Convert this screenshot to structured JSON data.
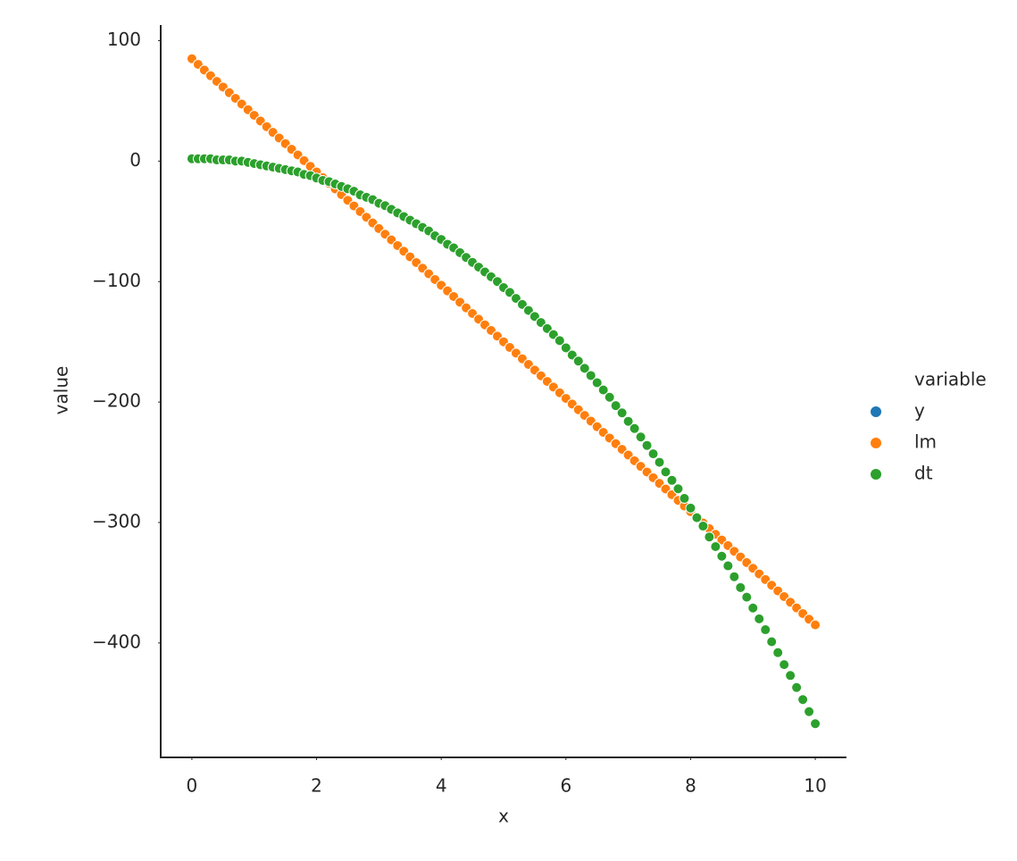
{
  "chart_data": {
    "type": "scatter",
    "x_label": "x",
    "y_label": "value",
    "xlim": [
      -0.5,
      10.5
    ],
    "xticks": [
      0,
      2,
      4,
      6,
      8,
      10
    ],
    "ylim": [
      -495,
      113
    ],
    "yticks": [
      {
        "value": -400,
        "label": "−400"
      },
      {
        "value": -300,
        "label": "−300"
      },
      {
        "value": -200,
        "label": "−200"
      },
      {
        "value": -100,
        "label": "−100"
      },
      0,
      100
    ],
    "grid": false,
    "legend_title": "variable",
    "legend_position": "right",
    "x": [
      0,
      0.1,
      0.2,
      0.3,
      0.4,
      0.5,
      0.6,
      0.7,
      0.8,
      0.9,
      1,
      1.1,
      1.2,
      1.3,
      1.4,
      1.5,
      1.6,
      1.7,
      1.8,
      1.9,
      2,
      2.1,
      2.2,
      2.3,
      2.4,
      2.5,
      2.6,
      2.7,
      2.8,
      2.9,
      3,
      3.1,
      3.2,
      3.3,
      3.4,
      3.5,
      3.6,
      3.7,
      3.8,
      3.9,
      4,
      4.1,
      4.2,
      4.3,
      4.4,
      4.5,
      4.6,
      4.7,
      4.8,
      4.9,
      5,
      5.1,
      5.2,
      5.3,
      5.4,
      5.5,
      5.6,
      5.7,
      5.8,
      5.9,
      6,
      6.1,
      6.2,
      6.3,
      6.4,
      6.5,
      6.6,
      6.7,
      6.8,
      6.9,
      7,
      7.1,
      7.2,
      7.3,
      7.4,
      7.5,
      7.6,
      7.7,
      7.8,
      7.9,
      8,
      8.1,
      8.2,
      8.3,
      8.4,
      8.5,
      8.6,
      8.7,
      8.8,
      8.9,
      9,
      9.1,
      9.2,
      9.3,
      9.4,
      9.5,
      9.6,
      9.7,
      9.8,
      9.9,
      10
    ],
    "series": [
      {
        "name": "y",
        "color": "#1f77b4",
        "values": [
          null,
          null,
          null,
          null,
          null,
          null,
          null,
          null,
          null,
          null,
          null,
          null,
          null,
          null,
          null,
          null,
          null,
          null,
          null,
          null,
          null,
          null,
          null,
          null,
          null,
          null,
          null,
          null,
          null,
          null,
          null,
          null,
          null,
          null,
          null,
          null,
          null,
          null,
          null,
          null,
          null,
          null,
          null,
          null,
          null,
          null,
          null,
          null,
          null,
          null,
          null,
          null,
          null,
          null,
          null,
          null,
          null,
          null,
          null,
          null,
          null,
          null,
          null,
          null,
          null,
          null,
          null,
          null,
          null,
          null,
          null,
          null,
          null,
          null,
          null,
          null,
          null,
          null,
          null,
          null,
          null,
          null,
          null,
          null,
          null,
          null,
          null,
          null,
          null,
          null,
          null,
          null,
          null,
          null,
          null,
          null,
          null,
          null,
          null,
          null,
          null
        ]
      },
      {
        "name": "lm",
        "color": "#ff7f0e",
        "values": [
          85,
          80.3,
          75.6,
          70.9,
          66.2,
          61.5,
          56.8,
          52.1,
          47.4,
          42.7,
          38,
          33.3,
          28.6,
          23.9,
          19.2,
          14.5,
          9.8,
          5.1,
          0.4,
          -4.3,
          -9,
          -13.7,
          -18.4,
          -23.1,
          -27.8,
          -32.5,
          -37.2,
          -41.9,
          -46.6,
          -51.3,
          -56,
          -60.7,
          -65.4,
          -70.1,
          -74.8,
          -79.5,
          -84.2,
          -88.9,
          -93.6,
          -98.3,
          -103,
          -107.7,
          -112.4,
          -117.1,
          -121.8,
          -126.5,
          -131.2,
          -135.9,
          -140.6,
          -145.3,
          -150,
          -154.7,
          -159.4,
          -164.1,
          -168.8,
          -173.5,
          -178.2,
          -182.9,
          -187.6,
          -192.3,
          -197,
          -201.7,
          -206.4,
          -211.1,
          -215.8,
          -220.5,
          -225.2,
          -229.9,
          -234.6,
          -239.3,
          -244,
          -248.7,
          -253.4,
          -258.1,
          -262.8,
          -267.5,
          -272.2,
          -276.9,
          -281.6,
          -286.3,
          -291,
          -295.7,
          -300.4,
          -305.1,
          -309.8,
          -314.5,
          -319.2,
          -323.9,
          -328.6,
          -333.3,
          -338,
          -342.7,
          -347.4,
          -352.1,
          -356.8,
          -361.5,
          -366.2,
          -370.9,
          -375.6,
          -380.3,
          -385
        ]
      },
      {
        "name": "dt",
        "color": "#2ca02c",
        "values": [
          2,
          2,
          2,
          2,
          1,
          1,
          1,
          0,
          0,
          -1,
          -2,
          -3,
          -4,
          -5,
          -6,
          -7,
          -8,
          -9,
          -11,
          -12,
          -14,
          -16,
          -17,
          -19,
          -21,
          -23,
          -25,
          -28,
          -30,
          -32,
          -35,
          -37,
          -40,
          -43,
          -46,
          -49,
          -52,
          -55,
          -58,
          -62,
          -65,
          -69,
          -72,
          -76,
          -80,
          -84,
          -88,
          -92,
          -96,
          -100,
          -105,
          -109,
          -114,
          -119,
          -124,
          -129,
          -134,
          -139,
          -144,
          -149,
          -155,
          -161,
          -166,
          -172,
          -178,
          -184,
          -190,
          -196,
          -203,
          -209,
          -216,
          -222,
          -229,
          -236,
          -243,
          -250,
          -258,
          -265,
          -272,
          -280,
          -288,
          -296,
          -303,
          -312,
          -320,
          -328,
          -336,
          -345,
          -354,
          -362,
          -371,
          -380,
          -389,
          -399,
          -408,
          -418,
          -427,
          -437,
          -447,
          -457,
          -467
        ]
      }
    ]
  }
}
